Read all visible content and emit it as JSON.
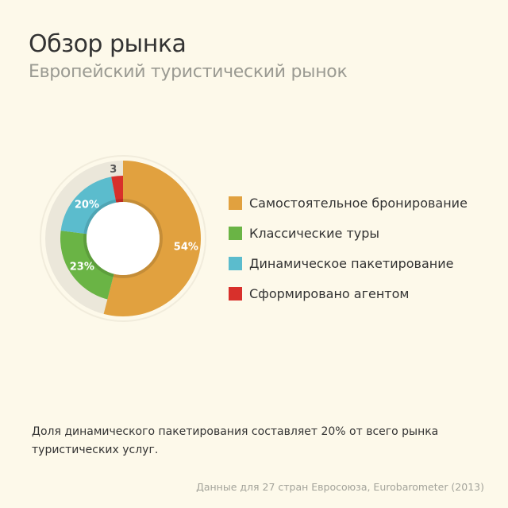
{
  "header": {
    "title": "Обзор рынка",
    "subtitle": "Европейский туристический рынок"
  },
  "chart_data": {
    "type": "pie",
    "variant": "donut",
    "series": [
      {
        "name": "Самостоятельное бронирование",
        "value": 54,
        "label": "54%",
        "color": "#e1a13f"
      },
      {
        "name": "Классические туры",
        "value": 23,
        "label": "23%",
        "color": "#6ab445"
      },
      {
        "name": "Динамическое пакетирование",
        "value": 20,
        "label": "20%",
        "color": "#5bbccd"
      },
      {
        "name": "Сформировано агентом",
        "value": 3,
        "label": "3",
        "color": "#d8302b"
      }
    ],
    "legend_position": "right",
    "ring_background_color": "#ebe7da"
  },
  "footer": {
    "note": "Доля динамического пакетирования составляет 20% от всего рынка туристических услуг.",
    "source": "Данные для 27 стран Евросоюза, Eurobarometer (2013)"
  }
}
